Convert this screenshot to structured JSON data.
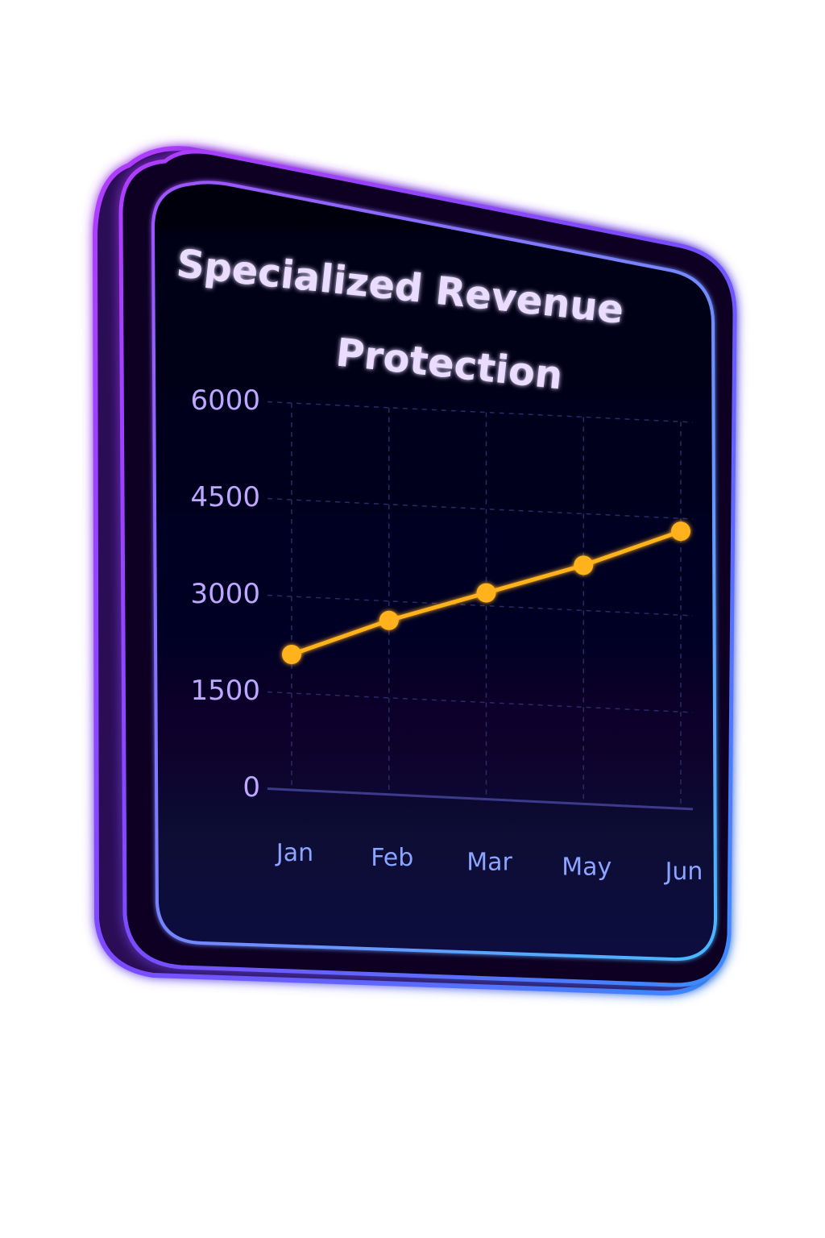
{
  "chart_data": {
    "type": "line",
    "title": "Specialized Revenue Protection",
    "title_lines": [
      "Specialized Revenue",
      "Protection"
    ],
    "categories": [
      "Jan",
      "Feb",
      "Mar",
      "May",
      "Jun"
    ],
    "y_ticks": [
      "6000",
      "4500",
      "3000",
      "1500",
      "0"
    ],
    "ylim": [
      0,
      6000
    ],
    "series": [
      {
        "values": [
          2100,
          2700,
          3200,
          3700,
          4300
        ]
      }
    ],
    "grid": true,
    "legend": "none"
  },
  "colors": {
    "frame_outer": "#a93cff",
    "frame_inner": "#5aa8ff",
    "panel_fill": "#05031a",
    "line": "#ffb21f",
    "title": "#e9dcff",
    "tick_text": "#bfa6ff",
    "grid": "#2a2a66"
  }
}
